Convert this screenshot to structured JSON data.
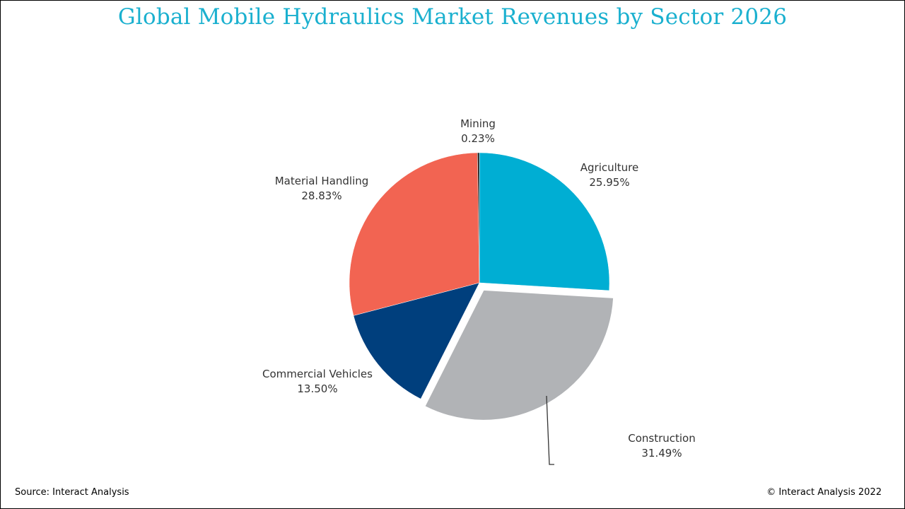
{
  "title": "Global Mobile Hydraulics Market Revenues by Sector 2026",
  "footer": {
    "source": "Source: Interact Analysis",
    "copyright": "© Interact Analysis 2022"
  },
  "chart_data": {
    "type": "pie",
    "title": "Global Mobile Hydraulics Market Revenues by Sector 2026",
    "slices": [
      {
        "name": "Agriculture",
        "value": 25.95,
        "label": "25.95%",
        "color": "#00aed3",
        "exploded": false
      },
      {
        "name": "Construction",
        "value": 31.49,
        "label": "31.49%",
        "color": "#b1b3b6",
        "exploded": true
      },
      {
        "name": "Commercial Vehicles",
        "value": 13.5,
        "label": "13.50%",
        "color": "#003f7d",
        "exploded": false
      },
      {
        "name": "Material Handling",
        "value": 28.83,
        "label": "28.83%",
        "color": "#f26452",
        "exploded": false
      },
      {
        "name": "Mining",
        "value": 0.23,
        "label": "0.23%",
        "color": "#1a1a1a",
        "exploded": false
      }
    ],
    "start_angle": "12 o'clock",
    "direction": "clockwise",
    "legend": "none"
  }
}
